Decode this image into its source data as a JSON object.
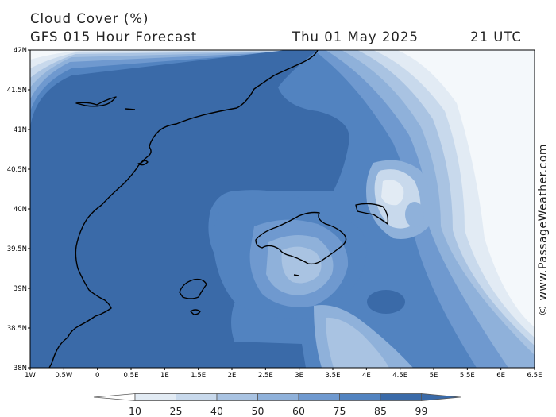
{
  "header": {
    "line1": "Cloud Cover (%)",
    "line2": "GFS 015 Hour Forecast",
    "date": "Thu 01 May 2025",
    "time": "21 UTC"
  },
  "map": {
    "lat_labels": [
      "42N",
      "41.5N",
      "41N",
      "40.5N",
      "40N",
      "39.5N",
      "39N",
      "38.5N",
      "38N"
    ],
    "lon_labels": [
      "1W",
      "0.5W",
      "0",
      "0.5E",
      "1E",
      "1.5E",
      "2E",
      "2.5E",
      "3E",
      "3.5E",
      "4E",
      "4.5E",
      "5E",
      "5.5E",
      "6E",
      "6.5E"
    ],
    "colors": {
      "c10": "#f4f8fb",
      "c25": "#e2ebf4",
      "c40": "#c8d9ec",
      "c50": "#a9c3e2",
      "c60": "#8fb1da",
      "c75": "#6f99cf",
      "c85": "#5283c0",
      "c99": "#3a6aa8",
      "coast": "#000000"
    }
  },
  "legend": {
    "labels": [
      "10",
      "25",
      "40",
      "50",
      "60",
      "75",
      "85",
      "99"
    ]
  },
  "credit": "© www.PassageWeather.com"
}
